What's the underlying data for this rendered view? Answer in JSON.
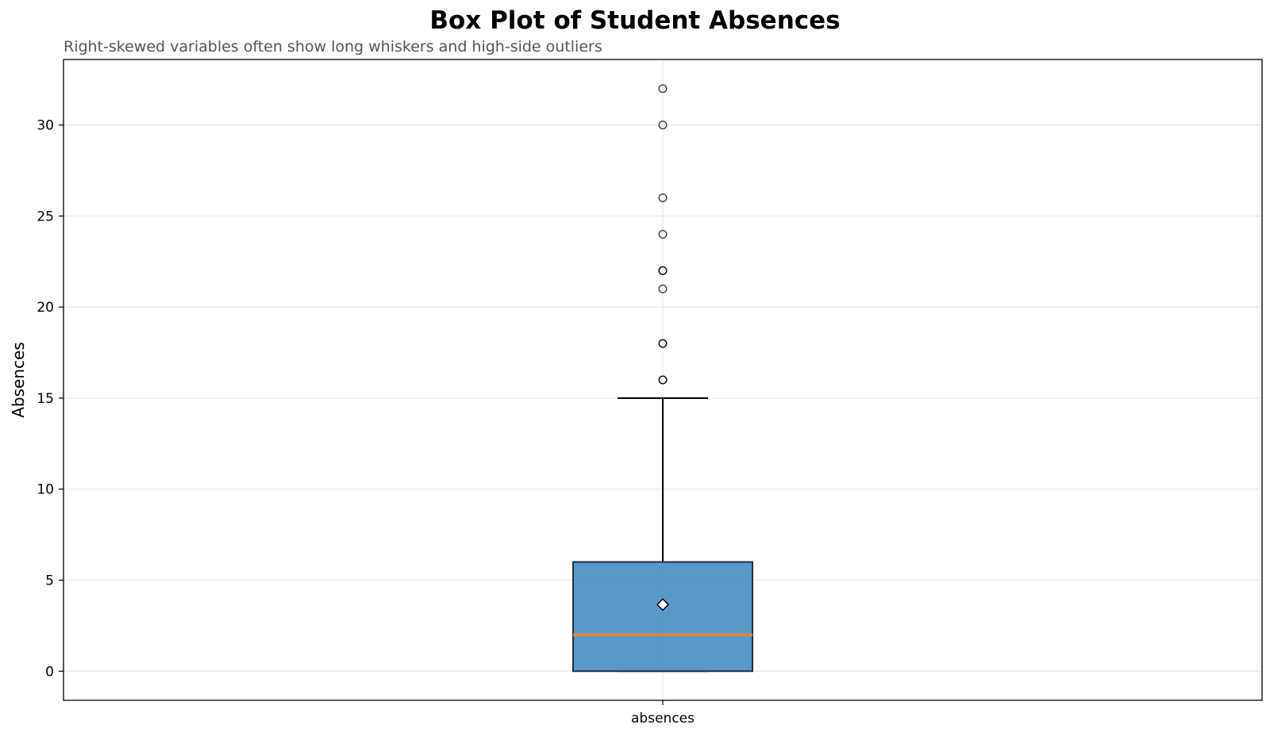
{
  "chart_data": {
    "type": "box",
    "title": "Box Plot of Student Absences",
    "subtitle": "Right-skewed variables often show long whiskers and high-side outliers",
    "xlabel": "",
    "ylabel": "Absences",
    "categories": [
      "absences"
    ],
    "ylim": [
      -1.6,
      33.6
    ],
    "yticks": [
      0,
      5,
      10,
      15,
      20,
      25,
      30
    ],
    "grid": true,
    "box": {
      "name": "absences",
      "whisker_low": 0,
      "q1": 0,
      "median": 2,
      "q3": 6,
      "whisker_high": 15,
      "mean": 3.66,
      "outliers": [
        16,
        16,
        18,
        18,
        21,
        22,
        22,
        24,
        26,
        30,
        32
      ]
    },
    "colors": {
      "box_fill": "#4a90c6",
      "median": "#e8822a",
      "grid": "#e6e6e6"
    }
  }
}
